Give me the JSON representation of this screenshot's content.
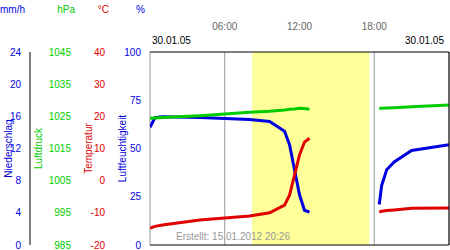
{
  "chart_data": {
    "type": "line",
    "dates": [
      "30.01.05",
      "30.01.05"
    ],
    "footer": "Erstellt: 15.01.2012 20:26",
    "xlim": [
      0,
      24
    ],
    "xticks": [
      {
        "value": 6,
        "label": "06:00"
      },
      {
        "value": 12,
        "label": "12:00"
      },
      {
        "value": 18,
        "label": "18:00"
      }
    ],
    "grid": true,
    "daylight": [
      8.2,
      17.6
    ],
    "y_axes": [
      {
        "label": "Luftfeuchtigkeit",
        "unit": "%",
        "color": "#0000e0",
        "ylim": [
          0,
          100
        ],
        "yticks": [
          0,
          25,
          50,
          75,
          100
        ]
      },
      {
        "label": "Temperatur",
        "unit": "°C",
        "color": "#e00000",
        "ylim": [
          -20,
          40
        ],
        "yticks": [
          -20,
          -10,
          0,
          10,
          20,
          30,
          40
        ]
      },
      {
        "label": "Luftdruck",
        "unit": "hPa",
        "color": "#00cc00",
        "ylim": [
          985,
          1045
        ],
        "yticks": [
          985,
          995,
          1005,
          1015,
          1025,
          1035,
          1045
        ]
      },
      {
        "label": "Niederschlag",
        "unit": "mm/h",
        "color": "#0000e0",
        "ylim": [
          0,
          24
        ],
        "yticks": [
          0,
          4,
          8,
          12,
          16,
          20,
          24
        ]
      }
    ],
    "x": [
      0,
      0.4,
      1,
      4,
      8,
      9.6,
      10.8,
      11.2,
      11.6,
      12,
      12.4,
      12.8,
      15,
      18.4,
      18.6,
      19,
      19.6,
      21,
      24
    ],
    "series": [
      {
        "name": "Luftfeuchtigkeit",
        "axis": "Luftfeuchtigkeit",
        "color": "#0000e0",
        "values": [
          61,
          66,
          66.5,
          66,
          65,
          64,
          59,
          52,
          39,
          26,
          18,
          17,
          null,
          21,
          31,
          39,
          43,
          49,
          52
        ]
      },
      {
        "name": "Temperatur",
        "axis": "Temperatur",
        "color": "#e00000",
        "values": [
          -14.7,
          -14.2,
          -13.8,
          -12.2,
          -11,
          -10,
          -7.6,
          -4.5,
          1.7,
          8,
          12,
          13.2,
          null,
          -9.8,
          -9.5,
          -9.3,
          -9.1,
          -8.6,
          -8.5
        ]
      },
      {
        "name": "Luftdruck",
        "axis": "Luftdruck",
        "color": "#00cc00",
        "values": [
          1024.4,
          1024.5,
          1024.6,
          1025.2,
          1026.3,
          1026.6,
          1027,
          1027.2,
          1027.3,
          1027.5,
          1027.4,
          1027.2,
          null,
          1027.5,
          1027.5,
          1027.6,
          1027.7,
          1028,
          1028.5
        ]
      }
    ]
  }
}
